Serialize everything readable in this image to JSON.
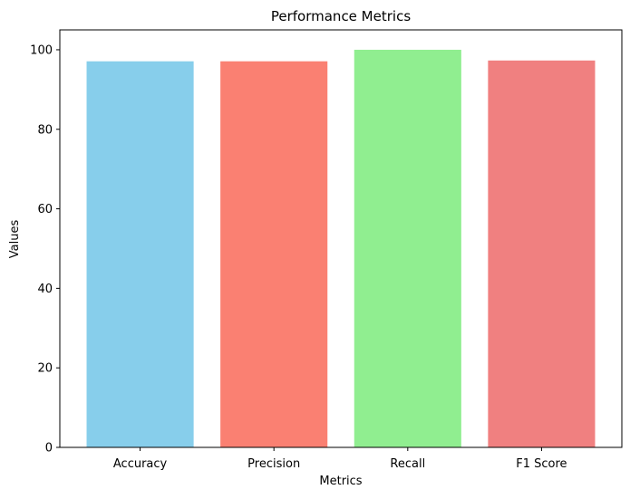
{
  "chart_data": {
    "type": "bar",
    "title": "Performance Metrics",
    "xlabel": "Metrics",
    "ylabel": "Values",
    "categories": [
      "Accuracy",
      "Precision",
      "Recall",
      "F1 Score"
    ],
    "values": [
      97.1,
      97.1,
      100.0,
      97.3
    ],
    "colors": [
      "#87ceeb",
      "#fa8072",
      "#90ee90",
      "#f08080"
    ],
    "ylim": [
      0,
      105
    ],
    "yticks": [
      0,
      20,
      40,
      60,
      80,
      100
    ],
    "grid": false,
    "legend": "none"
  }
}
